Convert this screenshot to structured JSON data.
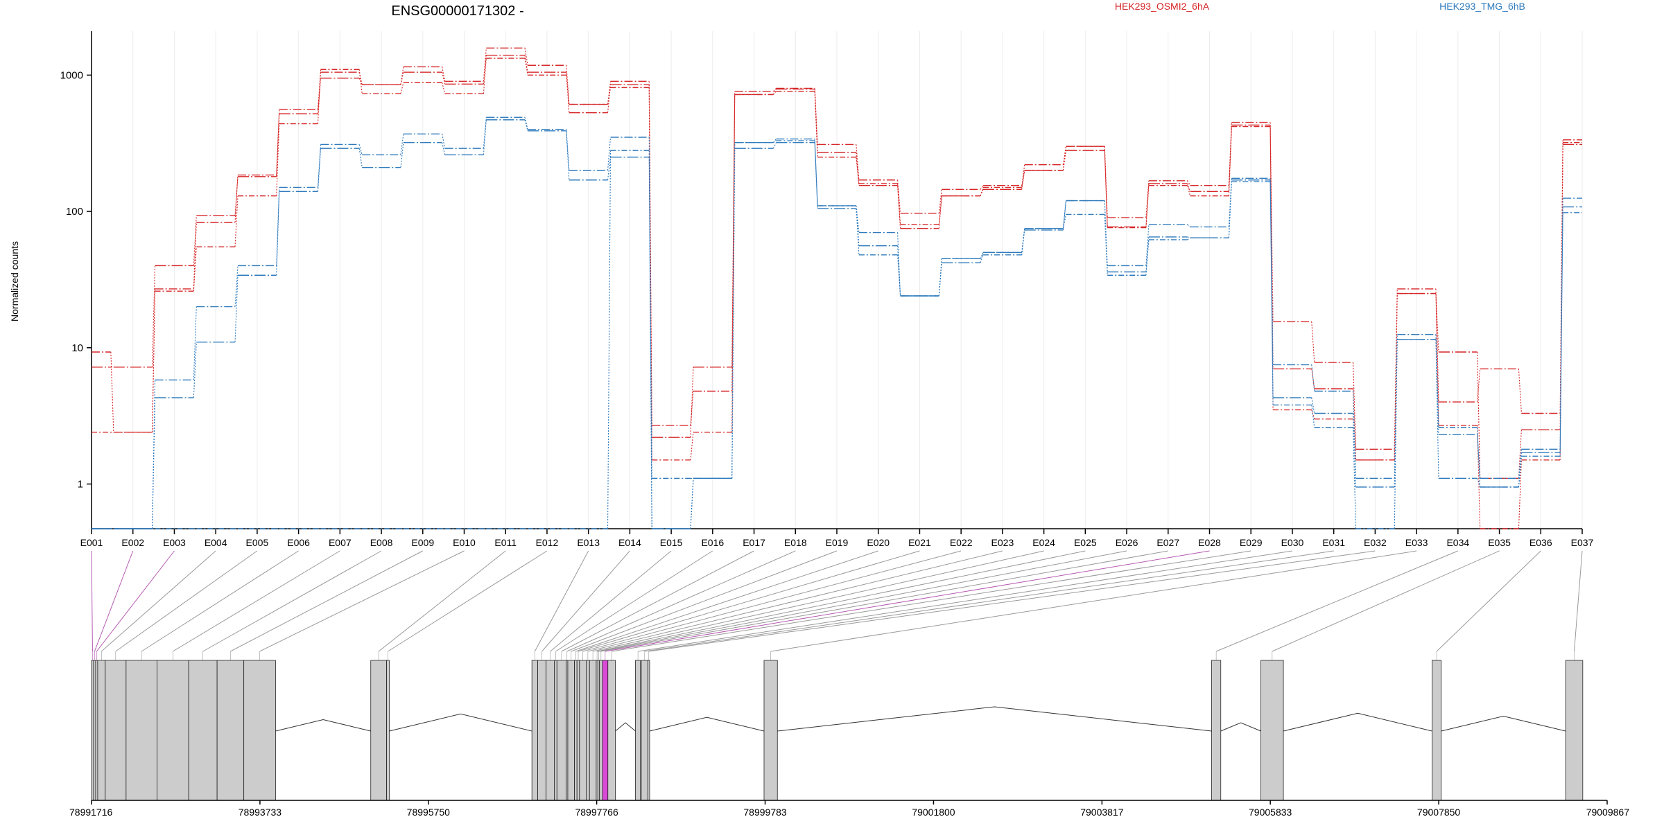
{
  "chart_data": {
    "type": "line",
    "title": "ENSG00000171302 -",
    "ylabel": "Normalized counts",
    "xlabel": "",
    "y_scale": "log",
    "ylim": [
      0.47,
      2100
    ],
    "y_ticks": [
      "1",
      "10",
      "100",
      "1000"
    ],
    "grid": "vertical-light",
    "legend": {
      "placement": "top",
      "entries": [
        "HEK293_OSMI2_6hA",
        "HEK293_TMG_6hB"
      ]
    },
    "colors": {
      "HEK293_OSMI2_6hA": "#d62728",
      "HEK293_TMG_6hB": "#2f7bbd"
    },
    "categories": [
      "E001",
      "E002",
      "E003",
      "E004",
      "E005",
      "E006",
      "E007",
      "E008",
      "E009",
      "E010",
      "E011",
      "E012",
      "E013",
      "E014",
      "E015",
      "E016",
      "E017",
      "E018",
      "E019",
      "E020",
      "E021",
      "E022",
      "E023",
      "E024",
      "E025",
      "E026",
      "E027",
      "E028",
      "E029",
      "E030",
      "E031",
      "E032",
      "E033",
      "E034",
      "E035",
      "E036",
      "E037"
    ],
    "series": [
      {
        "group": "HEK293_OSMI2_6hA",
        "values": [
          9.3,
          2.4,
          27,
          83,
          185,
          560,
          1050,
          850,
          1150,
          900,
          1580,
          1180,
          610,
          900,
          2.7,
          4.8,
          760,
          800,
          310,
          170,
          97,
          145,
          155,
          220,
          300,
          90,
          168,
          155,
          450,
          15.5,
          7.8,
          1.8,
          27,
          4,
          7,
          3.3,
          335
        ]
      },
      {
        "group": "HEK293_OSMI2_6hA",
        "values": [
          7.2,
          7.2,
          40,
          93,
          180,
          520,
          950,
          850,
          1050,
          860,
          1400,
          1050,
          530,
          850,
          2.2,
          7.2,
          720,
          790,
          270,
          155,
          75,
          130,
          145,
          200,
          280,
          77,
          160,
          140,
          430,
          7,
          5,
          1.5,
          25,
          9.3,
          1.1,
          2.5,
          310
        ]
      },
      {
        "group": "HEK293_OSMI2_6hA",
        "values": [
          2.4,
          2.4,
          26,
          55,
          130,
          440,
          1100,
          730,
          880,
          730,
          1330,
          1000,
          610,
          810,
          1.5,
          2.4,
          720,
          760,
          250,
          160,
          80,
          130,
          150,
          200,
          300,
          76,
          155,
          130,
          420,
          3.5,
          3,
          1.5,
          25,
          2.7,
          0.47,
          1.5,
          320
        ]
      },
      {
        "group": "HEK293_TMG_6hB",
        "values": [
          0.47,
          0.47,
          5.8,
          20,
          40,
          150,
          310,
          260,
          370,
          290,
          490,
          400,
          200,
          350,
          0.47,
          1.1,
          320,
          340,
          110,
          70,
          24,
          45,
          50,
          75,
          120,
          40,
          80,
          77,
          175,
          7.5,
          4.8,
          1.1,
          12.5,
          2.3,
          1.1,
          1.8,
          125
        ]
      },
      {
        "group": "HEK293_TMG_6hB",
        "values": [
          0.47,
          0.47,
          4.3,
          11,
          34,
          140,
          290,
          210,
          320,
          260,
          470,
          390,
          170,
          250,
          0.47,
          1.1,
          290,
          320,
          105,
          56,
          24,
          42,
          50,
          73,
          120,
          36,
          65,
          64,
          170,
          4.3,
          3.3,
          0.95,
          11.5,
          1.1,
          0.95,
          1.7,
          108
        ]
      },
      {
        "group": "HEK293_TMG_6hB",
        "values": [
          0.47,
          0.47,
          0.47,
          0.47,
          0.47,
          0.47,
          0.47,
          0.47,
          0.47,
          0.47,
          0.47,
          0.47,
          0.47,
          280,
          1.1,
          1.1,
          320,
          330,
          110,
          48,
          24,
          45,
          48,
          75,
          95,
          34,
          62,
          64,
          165,
          3.8,
          2.6,
          0.47,
          11.5,
          2.6,
          0.95,
          1.6,
          98
        ]
      }
    ],
    "genome_axis": {
      "range": [
        78991716,
        79009867
      ],
      "tick_labels": [
        "78991716",
        "78993733",
        "78995750",
        "78997766",
        "78999783",
        "79001800",
        "79003817",
        "79005833",
        "79007850",
        "79009867"
      ]
    },
    "exons": [
      {
        "id": "E001",
        "start": 78991716,
        "end": 78991740
      },
      {
        "id": "E002",
        "start": 78991740,
        "end": 78991765
      },
      {
        "id": "E003",
        "start": 78991765,
        "end": 78991790
      },
      {
        "id": "E004",
        "start": 78991790,
        "end": 78991880
      },
      {
        "id": "E005",
        "start": 78991880,
        "end": 78992130
      },
      {
        "id": "E006",
        "start": 78992130,
        "end": 78992500
      },
      {
        "id": "E007",
        "start": 78992500,
        "end": 78992880
      },
      {
        "id": "E008",
        "start": 78992880,
        "end": 78993220
      },
      {
        "id": "E009",
        "start": 78993220,
        "end": 78993540
      },
      {
        "id": "E010",
        "start": 78993540,
        "end": 78993920
      },
      {
        "id": "E011",
        "start": 78995060,
        "end": 78995250
      },
      {
        "id": "E012",
        "start": 78995250,
        "end": 78995282
      },
      {
        "id": "E013",
        "start": 78996990,
        "end": 78997060
      },
      {
        "id": "E014",
        "start": 78997060,
        "end": 78997160
      },
      {
        "id": "E015",
        "start": 78997160,
        "end": 78997260
      },
      {
        "id": "E016",
        "start": 78997260,
        "end": 78997290
      },
      {
        "id": "E017",
        "start": 78997290,
        "end": 78997400
      },
      {
        "id": "E018",
        "start": 78997400,
        "end": 78997420
      },
      {
        "id": "E019",
        "start": 78997420,
        "end": 78997500
      },
      {
        "id": "E020",
        "start": 78997500,
        "end": 78997530
      },
      {
        "id": "E021",
        "start": 78997530,
        "end": 78997560
      },
      {
        "id": "E022",
        "start": 78997560,
        "end": 78997640
      },
      {
        "id": "E023",
        "start": 78997640,
        "end": 78997680
      },
      {
        "id": "E024",
        "start": 78997680,
        "end": 78997760
      },
      {
        "id": "E025",
        "start": 78997760,
        "end": 78997780
      },
      {
        "id": "E026",
        "start": 78997780,
        "end": 78997800
      },
      {
        "id": "E027",
        "start": 78997800,
        "end": 78997835
      },
      {
        "id": "E028",
        "start": 78997835,
        "end": 78997900
      },
      {
        "id": "E029",
        "start": 78997900,
        "end": 78997990
      },
      {
        "id": "E030",
        "start": 78998230,
        "end": 78998290
      },
      {
        "id": "E031",
        "start": 78998300,
        "end": 78998380
      },
      {
        "id": "E032",
        "start": 78998380,
        "end": 78998400
      },
      {
        "id": "E033",
        "start": 78999770,
        "end": 78999930
      },
      {
        "id": "E034",
        "start": 79005130,
        "end": 79005240
      },
      {
        "id": "E035",
        "start": 79005720,
        "end": 79005990
      },
      {
        "id": "E036",
        "start": 79007770,
        "end": 79007880
      },
      {
        "id": "E037",
        "start": 79009370,
        "end": 79009575
      }
    ],
    "highlighted_exons": [
      "E001",
      "E002",
      "E003",
      "E028"
    ]
  }
}
